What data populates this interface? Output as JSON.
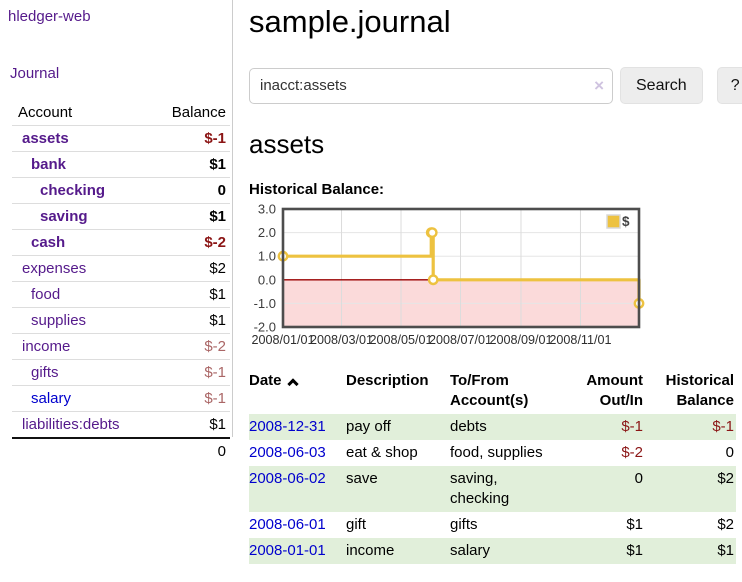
{
  "app": {
    "brand": "hledger-web",
    "nav_journal": "Journal"
  },
  "colors": {
    "link_purple": "#551a8b",
    "link_blue": "#0000cd",
    "negative_strong": "#8b1515",
    "negative_muted": "#aa6666",
    "row_stripe_green": "#e1efda",
    "series_gold": "#edc240"
  },
  "sidebar": {
    "header": {
      "account": "Account",
      "balance": "Balance"
    },
    "accounts": [
      {
        "name": "assets",
        "balance": "$-1",
        "depth": 1,
        "bold": true,
        "neg": "strong"
      },
      {
        "name": "bank",
        "balance": "$1",
        "depth": 2,
        "bold": true
      },
      {
        "name": "checking",
        "balance": "0",
        "depth": 3,
        "bold": true
      },
      {
        "name": "saving",
        "balance": "$1",
        "depth": 3,
        "bold": true
      },
      {
        "name": "cash",
        "balance": "$-2",
        "depth": 2,
        "bold": true,
        "neg": "strong"
      },
      {
        "name": "expenses",
        "balance": "$2",
        "depth": 1
      },
      {
        "name": "food",
        "balance": "$1",
        "depth": 2
      },
      {
        "name": "supplies",
        "balance": "$1",
        "depth": 2
      },
      {
        "name": "income",
        "balance": "$-2",
        "depth": 1,
        "neg": "muted"
      },
      {
        "name": "gifts",
        "balance": "$-1",
        "depth": 2,
        "neg": "muted"
      },
      {
        "name": "salary",
        "balance": "$-1",
        "depth": 2,
        "neg": "muted",
        "blue_link": true
      },
      {
        "name": "liabilities:debts",
        "balance": "$1",
        "depth": 1
      }
    ],
    "total": "0"
  },
  "header": {
    "title": "sample.journal"
  },
  "search": {
    "value": "inacct:assets",
    "clear_icon": "×",
    "button_label": "Search",
    "help_label": "?"
  },
  "account_page": {
    "heading": "assets",
    "chart_label": "Historical Balance:"
  },
  "chart_data": {
    "type": "line",
    "step": true,
    "title": "Historical Balance",
    "ylim": [
      -2,
      3
    ],
    "x_range": [
      "2008-01-01",
      "2008-12-31"
    ],
    "y_ticks": [
      {
        "value": 3,
        "label": "3.0"
      },
      {
        "value": 2,
        "label": "2.0"
      },
      {
        "value": 1,
        "label": "1.0"
      },
      {
        "value": 0,
        "label": "0.0"
      },
      {
        "value": -1,
        "label": "-1.0"
      },
      {
        "value": -2,
        "label": "-2.0"
      }
    ],
    "x_ticks": [
      {
        "date": "2008-01-01",
        "label": "2008/01/01"
      },
      {
        "date": "2008-03-01",
        "label": "2008/03/01"
      },
      {
        "date": "2008-05-01",
        "label": "2008/05/01"
      },
      {
        "date": "2008-07-01",
        "label": "2008/07/01"
      },
      {
        "date": "2008-09-01",
        "label": "2008/09/01"
      },
      {
        "date": "2008-11-01",
        "label": "2008/11/01"
      }
    ],
    "series": [
      {
        "name": "$",
        "color": "#edc240",
        "points": [
          {
            "x": "2008-01-01",
            "y": 1
          },
          {
            "x": "2008-06-01",
            "y": 2
          },
          {
            "x": "2008-06-02",
            "y": 2
          },
          {
            "x": "2008-06-03",
            "y": 0
          },
          {
            "x": "2008-12-31",
            "y": -1
          }
        ]
      }
    ],
    "legend": [
      {
        "label": "$",
        "color": "#edc240"
      }
    ],
    "legend_position": "top-right",
    "grid": true,
    "negative_region_fill": "#fbdada",
    "zero_line_color": "#990000",
    "border_color": "#4d4d4d"
  },
  "register": {
    "columns": [
      {
        "label": "Date",
        "sorted_asc": true
      },
      {
        "label": "Description"
      },
      {
        "label": "To/From Account(s)"
      },
      {
        "label": "Amount Out/In",
        "align": "right"
      },
      {
        "label": "Historical Balance",
        "align": "right"
      }
    ],
    "rows": [
      {
        "date": "2008-12-31",
        "description": "pay off",
        "accounts": "debts",
        "amount": "$-1",
        "balance": "$-1",
        "amount_neg": true,
        "balance_neg": true
      },
      {
        "date": "2008-06-03",
        "description": "eat & shop",
        "accounts": "food, supplies",
        "amount": "$-2",
        "balance": "0",
        "amount_neg": true
      },
      {
        "date": "2008-06-02",
        "description": "save",
        "accounts": "saving, checking",
        "amount": "0",
        "balance": "$2"
      },
      {
        "date": "2008-06-01",
        "description": "gift",
        "accounts": "gifts",
        "amount": "$1",
        "balance": "$2"
      },
      {
        "date": "2008-01-01",
        "description": "income",
        "accounts": "salary",
        "amount": "$1",
        "balance": "$1"
      }
    ]
  }
}
